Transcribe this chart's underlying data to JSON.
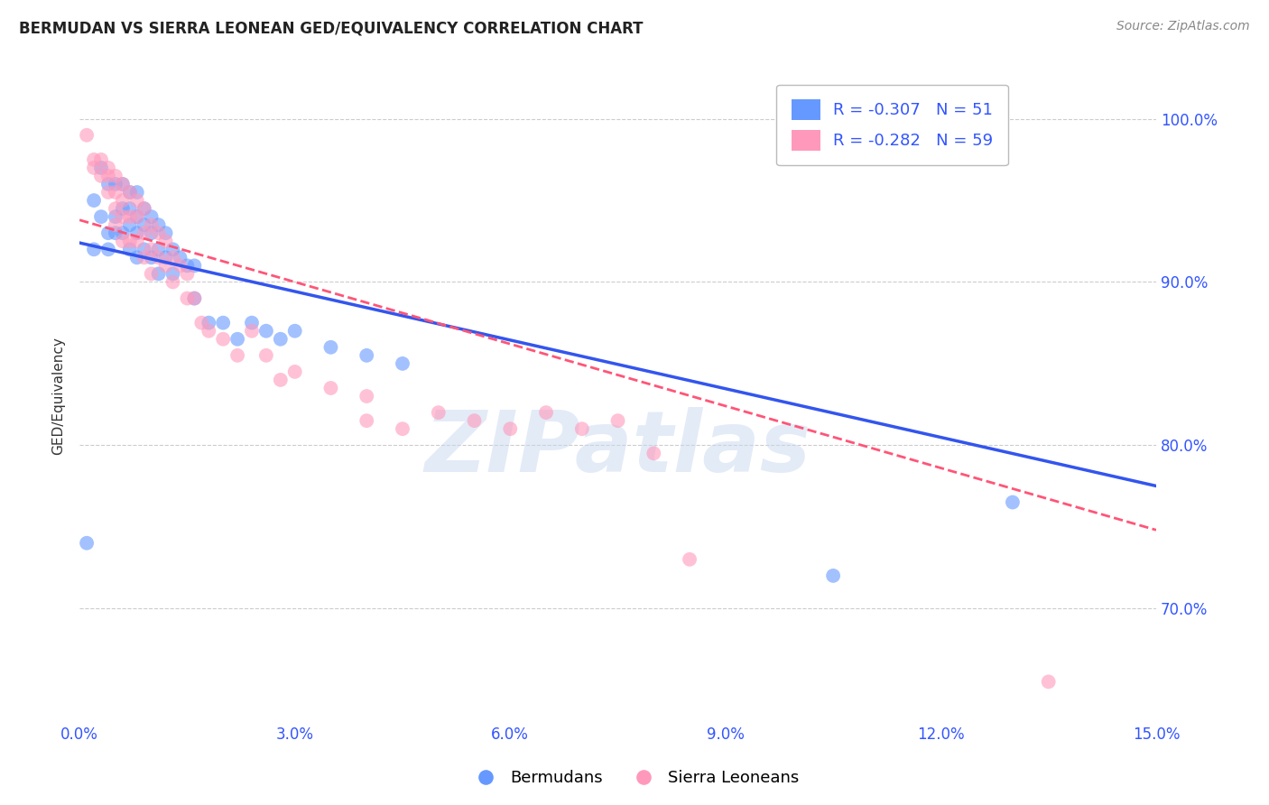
{
  "title": "BERMUDAN VS SIERRA LEONEAN GED/EQUIVALENCY CORRELATION CHART",
  "source": "Source: ZipAtlas.com",
  "ylabel": "GED/Equivalency",
  "xticks": [
    0.0,
    0.03,
    0.06,
    0.09,
    0.12,
    0.15
  ],
  "xlim": [
    0.0,
    0.15
  ],
  "ylim": [
    0.63,
    1.03
  ],
  "blue_color": "#6699FF",
  "pink_color": "#FF99BB",
  "blue_line_color": "#3355EE",
  "pink_line_color": "#FF5577",
  "legend_r_blue": "-0.307",
  "legend_n_blue": "51",
  "legend_r_pink": "-0.282",
  "legend_n_pink": "59",
  "watermark": "ZIPatlas",
  "blue_scatter_x": [
    0.001,
    0.002,
    0.002,
    0.003,
    0.003,
    0.004,
    0.004,
    0.004,
    0.005,
    0.005,
    0.005,
    0.006,
    0.006,
    0.006,
    0.007,
    0.007,
    0.007,
    0.007,
    0.008,
    0.008,
    0.008,
    0.008,
    0.009,
    0.009,
    0.009,
    0.01,
    0.01,
    0.01,
    0.011,
    0.011,
    0.011,
    0.012,
    0.012,
    0.013,
    0.013,
    0.014,
    0.015,
    0.016,
    0.016,
    0.018,
    0.02,
    0.022,
    0.024,
    0.026,
    0.028,
    0.03,
    0.035,
    0.04,
    0.045,
    0.105,
    0.13
  ],
  "blue_scatter_y": [
    0.74,
    0.95,
    0.92,
    0.97,
    0.94,
    0.96,
    0.93,
    0.92,
    0.96,
    0.94,
    0.93,
    0.96,
    0.945,
    0.93,
    0.955,
    0.945,
    0.935,
    0.92,
    0.955,
    0.94,
    0.93,
    0.915,
    0.945,
    0.935,
    0.92,
    0.94,
    0.93,
    0.915,
    0.935,
    0.92,
    0.905,
    0.93,
    0.915,
    0.92,
    0.905,
    0.915,
    0.91,
    0.91,
    0.89,
    0.875,
    0.875,
    0.865,
    0.875,
    0.87,
    0.865,
    0.87,
    0.86,
    0.855,
    0.85,
    0.72,
    0.765
  ],
  "pink_scatter_x": [
    0.001,
    0.002,
    0.002,
    0.003,
    0.003,
    0.004,
    0.004,
    0.004,
    0.005,
    0.005,
    0.005,
    0.005,
    0.006,
    0.006,
    0.006,
    0.006,
    0.007,
    0.007,
    0.007,
    0.008,
    0.008,
    0.008,
    0.009,
    0.009,
    0.009,
    0.01,
    0.01,
    0.01,
    0.011,
    0.011,
    0.012,
    0.012,
    0.013,
    0.013,
    0.014,
    0.015,
    0.015,
    0.016,
    0.017,
    0.018,
    0.02,
    0.022,
    0.024,
    0.026,
    0.028,
    0.03,
    0.035,
    0.04,
    0.04,
    0.045,
    0.05,
    0.055,
    0.06,
    0.065,
    0.07,
    0.075,
    0.08,
    0.085,
    0.135
  ],
  "pink_scatter_y": [
    0.99,
    0.975,
    0.97,
    0.975,
    0.965,
    0.97,
    0.965,
    0.955,
    0.965,
    0.955,
    0.945,
    0.935,
    0.96,
    0.95,
    0.94,
    0.925,
    0.955,
    0.94,
    0.925,
    0.95,
    0.94,
    0.925,
    0.945,
    0.93,
    0.915,
    0.935,
    0.92,
    0.905,
    0.93,
    0.915,
    0.925,
    0.91,
    0.915,
    0.9,
    0.91,
    0.905,
    0.89,
    0.89,
    0.875,
    0.87,
    0.865,
    0.855,
    0.87,
    0.855,
    0.84,
    0.845,
    0.835,
    0.83,
    0.815,
    0.81,
    0.82,
    0.815,
    0.81,
    0.82,
    0.81,
    0.815,
    0.795,
    0.73,
    0.655
  ],
  "blue_trendline_x0": 0.0,
  "blue_trendline_y0": 0.924,
  "blue_trendline_x1": 0.15,
  "blue_trendline_y1": 0.775,
  "pink_trendline_x0": 0.0,
  "pink_trendline_y0": 0.938,
  "pink_trendline_x1": 0.15,
  "pink_trendline_y1": 0.748
}
